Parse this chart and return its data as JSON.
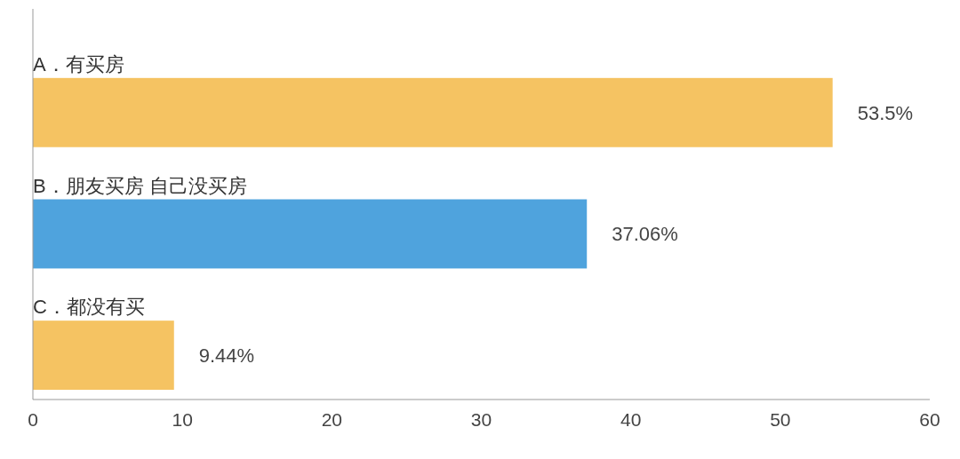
{
  "chart_data": {
    "type": "bar",
    "orientation": "horizontal",
    "categories": [
      "A．有买房",
      "B．朋友买房 自己没买房",
      "C．都没有买"
    ],
    "values": [
      53.5,
      37.06,
      9.44
    ],
    "colors": [
      "#f5c362",
      "#4fa3dd",
      "#f5c362"
    ],
    "value_labels": [
      "53.5%",
      "37.06%",
      "9.44%"
    ],
    "xlim": [
      0,
      60
    ],
    "xticks": [
      0,
      10,
      20,
      30,
      40,
      50,
      60
    ]
  }
}
